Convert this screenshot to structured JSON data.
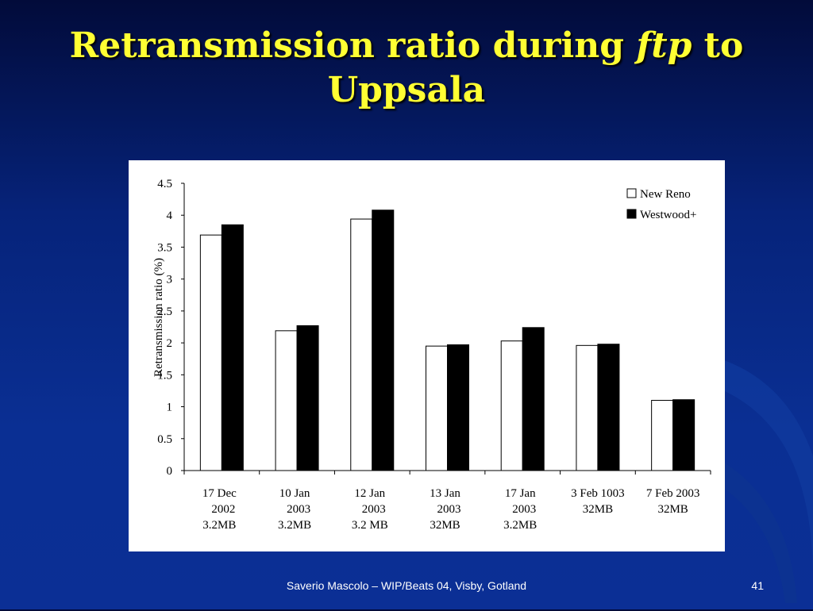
{
  "slide": {
    "title_part1": "Retransmission ratio during ",
    "title_em": "ftp",
    "title_part2": " to",
    "title_line2": "Uppsala",
    "footer": "Saverio Mascolo   –   WIP/Beats 04,  Visby, Gotland",
    "page_number": "41"
  },
  "chart_data": {
    "type": "bar",
    "ylabel": "Retransmission ratio (%)",
    "ylim": [
      0,
      4.5
    ],
    "yticks": [
      "0",
      "0.5",
      "1",
      "1.5",
      "2",
      "2.5",
      "3",
      "3.5",
      "4",
      "4.5"
    ],
    "categories": [
      [
        "17 Dec",
        "2002",
        "3.2MB"
      ],
      [
        "10 Jan",
        "2003",
        "3.2MB"
      ],
      [
        "12 Jan",
        "2003",
        "3.2 MB"
      ],
      [
        "13 Jan",
        "2003",
        "32MB"
      ],
      [
        "17 Jan",
        "2003",
        "3.2MB"
      ],
      [
        "3 Feb 1003",
        "32MB"
      ],
      [
        "7 Feb 2003",
        "32MB"
      ]
    ],
    "series": [
      {
        "name": "New Reno",
        "color": "#ffffff",
        "values": [
          3.69,
          2.19,
          3.94,
          1.95,
          2.03,
          1.96,
          1.1
        ]
      },
      {
        "name": "Westwood+",
        "color": "#000000",
        "values": [
          3.85,
          2.27,
          4.08,
          1.97,
          2.24,
          1.98,
          1.11
        ]
      }
    ],
    "legend": "top-right",
    "grid": false
  }
}
